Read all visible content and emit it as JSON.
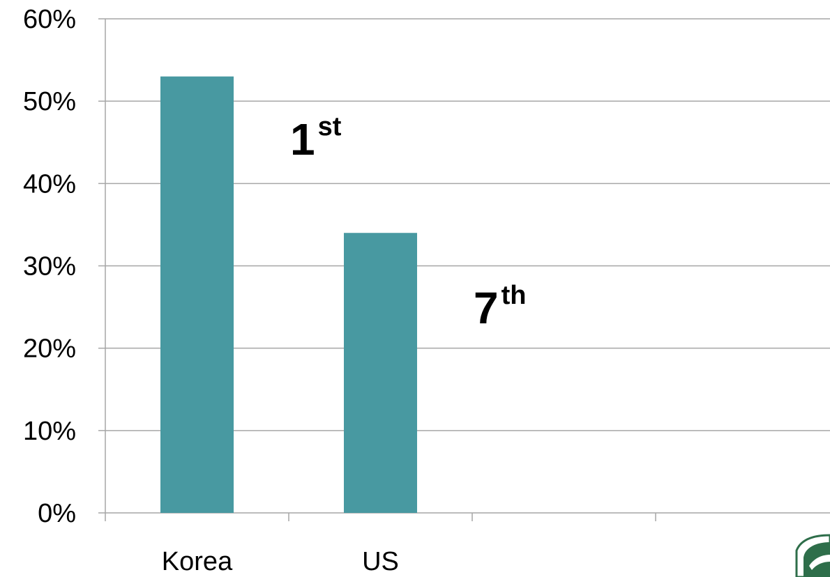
{
  "chart_data": {
    "type": "bar",
    "categories": [
      "Korea",
      "US",
      "",
      ""
    ],
    "values": [
      53,
      34,
      null,
      null
    ],
    "ylim": [
      0,
      60
    ],
    "yticks": [
      0,
      10,
      20,
      30,
      40,
      50,
      60
    ],
    "ytick_labels": [
      "0%",
      "10%",
      "20%",
      "30%",
      "40%",
      "50%",
      "60%"
    ],
    "grid": true,
    "legend": "none",
    "bar_color": "#4899a1",
    "annotations": [
      {
        "category_index": 1,
        "value": 43.5,
        "num": "1",
        "sup": "st"
      },
      {
        "category_index": 2,
        "value": 23,
        "num": "7",
        "sup": "th"
      }
    ]
  },
  "logo": {
    "name": "logo-icon",
    "color": "#2e6e4a"
  }
}
